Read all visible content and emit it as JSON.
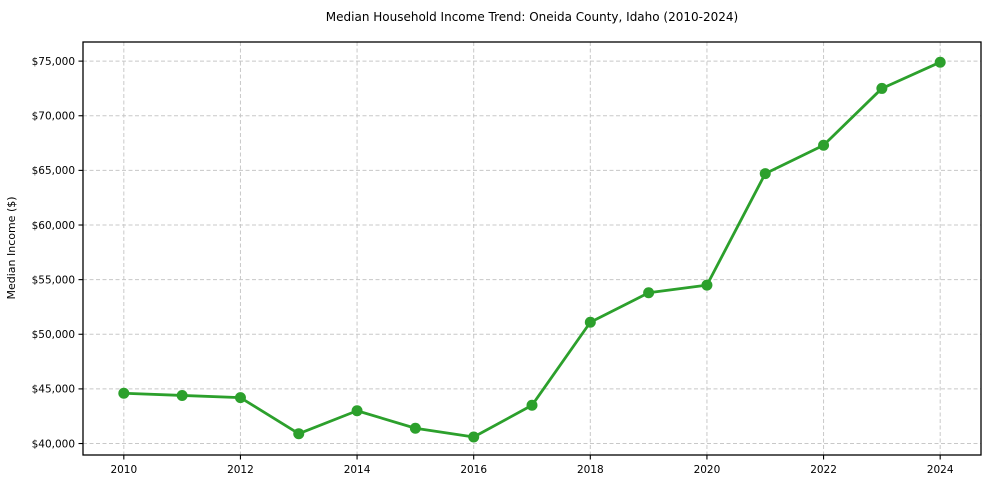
{
  "window": {
    "background": "#ffffff"
  },
  "chart_data": {
    "type": "line",
    "title": "Median Household Income Trend: Oneida County, Idaho (2010-2024)",
    "xlabel": "",
    "ylabel": "Median Income ($)",
    "x": [
      2010,
      2011,
      2012,
      2013,
      2014,
      2015,
      2016,
      2017,
      2018,
      2019,
      2020,
      2021,
      2022,
      2023,
      2024
    ],
    "series": [
      {
        "name": "Median Household Income",
        "values": [
          44600,
          44400,
          44200,
          40900,
          43000,
          41400,
          40600,
          43500,
          51100,
          53800,
          54500,
          64700,
          67300,
          72500,
          74900
        ],
        "color": "#2ca02c",
        "marker": "circle"
      }
    ],
    "xlim": [
      2009.3,
      2024.7
    ],
    "ylim": [
      38950,
      76750
    ],
    "xticks": [
      2010,
      2012,
      2014,
      2016,
      2018,
      2020,
      2022,
      2024
    ],
    "xtick_labels": [
      "2010",
      "2012",
      "2014",
      "2016",
      "2018",
      "2020",
      "2022",
      "2024"
    ],
    "yticks": [
      40000,
      45000,
      50000,
      55000,
      60000,
      65000,
      70000,
      75000
    ],
    "ytick_labels": [
      "$40,000",
      "$45,000",
      "$50,000",
      "$55,000",
      "$60,000",
      "$65,000",
      "$70,000",
      "$75,000"
    ],
    "grid": true,
    "grid_color": "#c8c8c8",
    "grid_style": "dashed",
    "axis_color": "#000000",
    "text_color": "#000000",
    "legend": false
  }
}
